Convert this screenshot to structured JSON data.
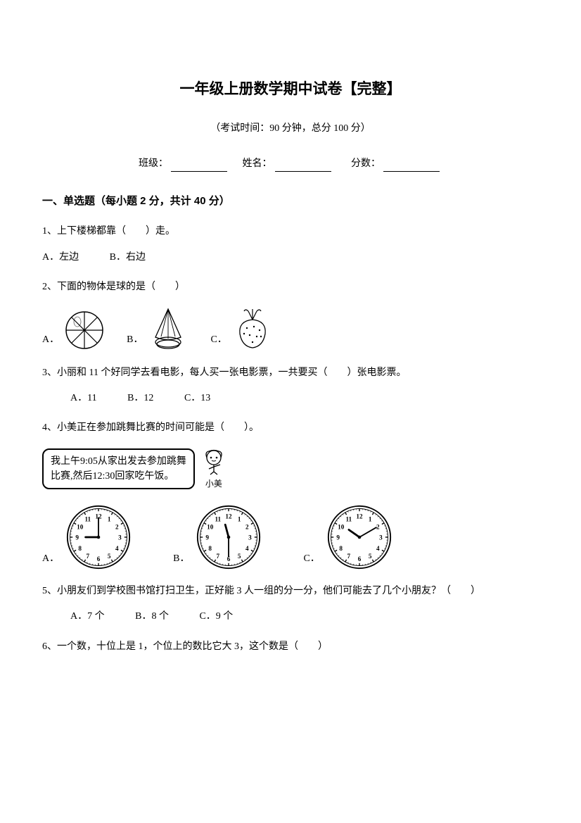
{
  "title": "一年级上册数学期中试卷【完整】",
  "subtitle": "（考试时间：90 分钟，总分 100 分）",
  "info": {
    "class_label": "班级：",
    "name_label": "姓名：",
    "score_label": "分数："
  },
  "section1": {
    "header": "一、单选题（每小题 2 分，共计 40 分）",
    "q1": {
      "text": "1、上下楼梯都靠（　　）走。",
      "a": "A．左边",
      "b": "B．右边"
    },
    "q2": {
      "text": "2、下面的物体是球的是（　　）",
      "a": "A．",
      "b": "B．",
      "c": "C．"
    },
    "q3": {
      "text": "3、小丽和 11 个好同学去看电影，每人买一张电影票，一共要买（　　）张电影票。",
      "a": "A．11",
      "b": "B．12",
      "c": "C．13"
    },
    "q4": {
      "text": "4、小美正在参加跳舞比赛的时间可能是（　　）。",
      "speech_line1": "我上午9:05从家出发去参加跳舞",
      "speech_line2": "比赛,然后12:30回家吃午饭。",
      "person": "小美",
      "a": "A．",
      "b": "B．",
      "c": "C．"
    },
    "q5": {
      "text": "5、小朋友们到学校图书馆打扫卫生，正好能 3 人一组的分一分，他们可能去了几个小朋友？（　　）",
      "a": "A．7 个",
      "b": "B．8 个",
      "c": "C．9 个"
    },
    "q6": {
      "text": "6、一个数，十位上是 1，个位上的数比它大 3，这个数是（　　）"
    }
  },
  "clocks": {
    "c1": {
      "hour": 9,
      "minute": 0
    },
    "c2": {
      "hour": 11,
      "minute": 30
    },
    "c3": {
      "hour": 10,
      "minute": 10
    }
  }
}
